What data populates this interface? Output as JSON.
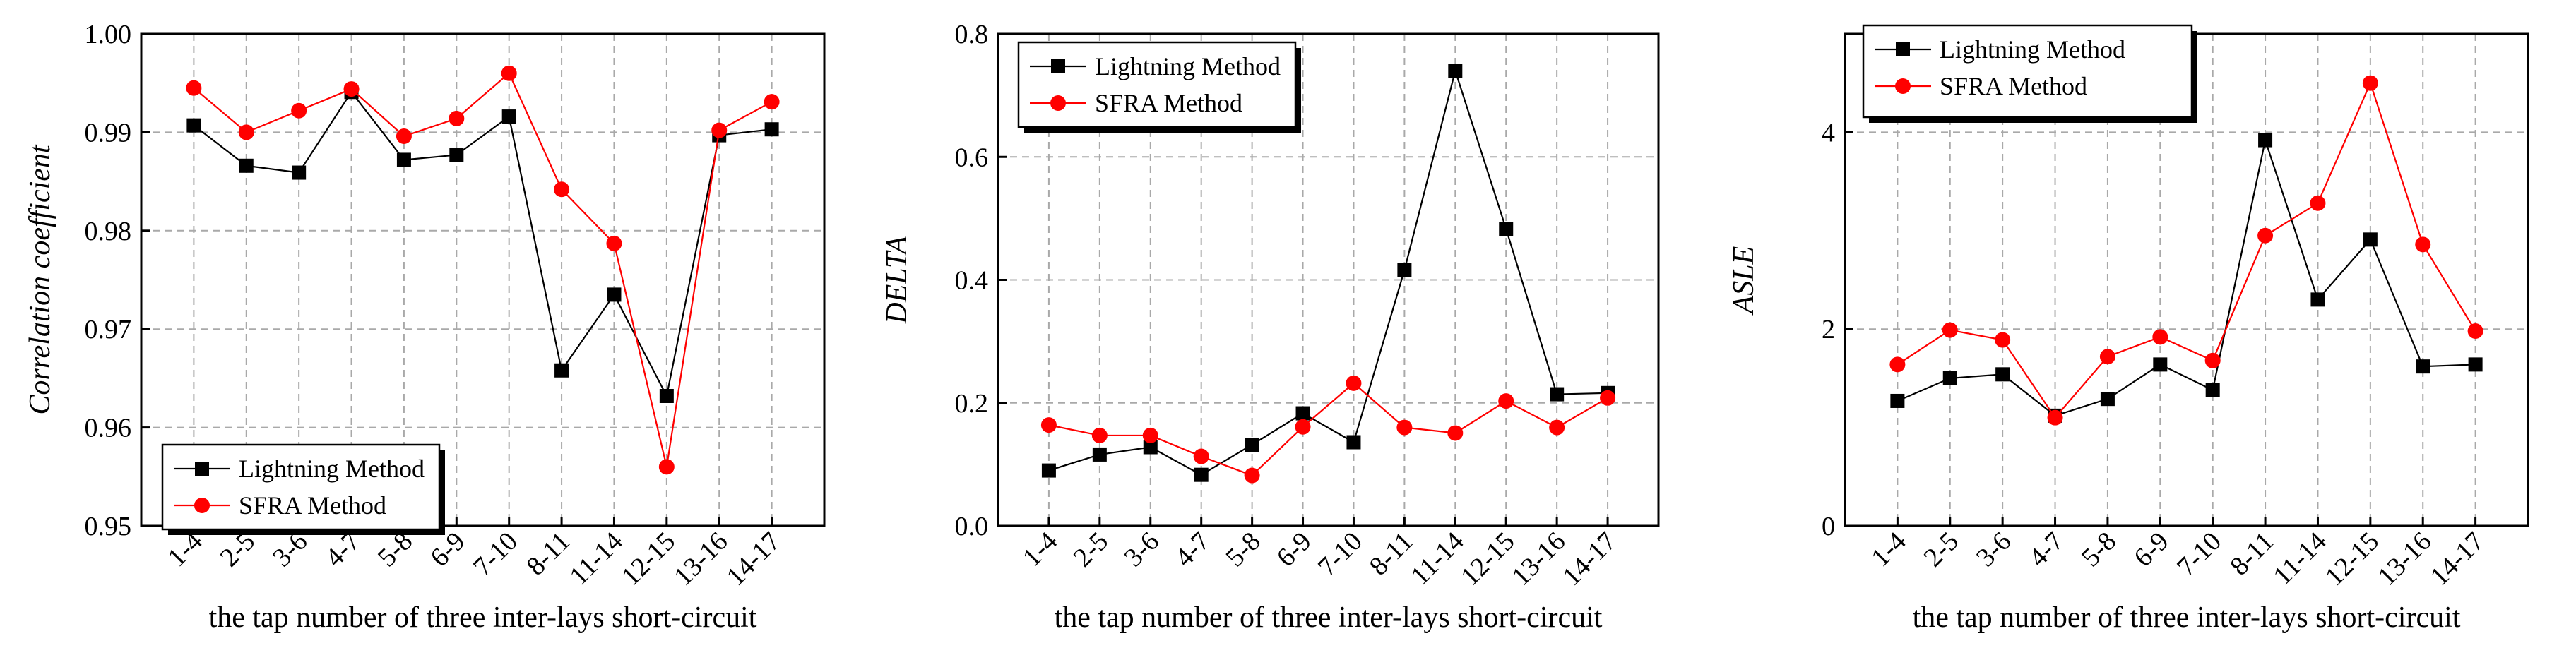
{
  "chart_data": [
    {
      "type": "line",
      "ylabel": "Correlation coefficient",
      "xlabel": "the tap number of three inter-lays short-circuit",
      "ylim": [
        0.95,
        1.0
      ],
      "yticks": [
        0.95,
        0.96,
        0.97,
        0.98,
        0.99,
        1.0
      ],
      "ytick_labels": [
        "0.95",
        "0.96",
        "0.97",
        "0.98",
        "0.99",
        "1.00"
      ],
      "categories": [
        "1-4",
        "2-5",
        "3-6",
        "4-7",
        "5-8",
        "6-9",
        "7-10",
        "8-11",
        "11-14",
        "12-15",
        "13-16",
        "14-17"
      ],
      "grid": true,
      "legend_position": "bottom-left",
      "series": [
        {
          "name": "Lightning Method",
          "color": "#000000",
          "marker": "square",
          "values": [
            0.9907,
            0.9866,
            0.9859,
            0.9941,
            0.9872,
            0.9877,
            0.9916,
            0.9658,
            0.9735,
            0.9632,
            0.9897,
            0.9903
          ]
        },
        {
          "name": "SFRA Method",
          "color": "#ff0000",
          "marker": "circle",
          "values": [
            0.9945,
            0.99,
            0.9922,
            0.9944,
            0.9896,
            0.9914,
            0.996,
            0.9842,
            0.9787,
            0.956,
            0.9902,
            0.9931
          ]
        }
      ]
    },
    {
      "type": "line",
      "ylabel": "DELTA",
      "xlabel": "the tap number of three inter-lays short-circuit",
      "ylim": [
        0.0,
        0.8
      ],
      "yticks": [
        0.0,
        0.2,
        0.4,
        0.6,
        0.8
      ],
      "ytick_labels": [
        "0.0",
        "0.2",
        "0.4",
        "0.6",
        "0.8"
      ],
      "categories": [
        "1-4",
        "2-5",
        "3-6",
        "4-7",
        "5-8",
        "6-9",
        "7-10",
        "8-11",
        "11-14",
        "12-15",
        "13-16",
        "14-17"
      ],
      "grid": true,
      "legend_position": "top-left",
      "series": [
        {
          "name": "Lightning Method",
          "color": "#000000",
          "marker": "square",
          "values": [
            0.09,
            0.116,
            0.128,
            0.083,
            0.132,
            0.183,
            0.136,
            0.416,
            0.74,
            0.483,
            0.214,
            0.216
          ]
        },
        {
          "name": "SFRA Method",
          "color": "#ff0000",
          "marker": "circle",
          "values": [
            0.164,
            0.147,
            0.147,
            0.113,
            0.082,
            0.161,
            0.232,
            0.16,
            0.151,
            0.203,
            0.16,
            0.208
          ]
        }
      ]
    },
    {
      "type": "line",
      "ylabel": "ASLE",
      "xlabel": "the tap number of three inter-lays short-circuit",
      "ylim": [
        0,
        5.0
      ],
      "yticks": [
        0,
        2,
        4
      ],
      "ytick_labels": [
        "0",
        "2",
        "4"
      ],
      "categories": [
        "1-4",
        "2-5",
        "3-6",
        "4-7",
        "5-8",
        "6-9",
        "7-10",
        "8-11",
        "11-14",
        "12-15",
        "13-16",
        "14-17"
      ],
      "grid": true,
      "legend_position": "top-left",
      "series": [
        {
          "name": "Lightning Method",
          "color": "#000000",
          "marker": "square",
          "values": [
            1.27,
            1.5,
            1.54,
            1.12,
            1.29,
            1.64,
            1.38,
            3.92,
            2.3,
            2.91,
            1.62,
            1.64
          ]
        },
        {
          "name": "SFRA Method",
          "color": "#ff0000",
          "marker": "circle",
          "values": [
            1.64,
            1.99,
            1.89,
            1.1,
            1.72,
            1.92,
            1.68,
            2.95,
            3.28,
            4.5,
            2.86,
            1.98
          ]
        }
      ]
    }
  ]
}
